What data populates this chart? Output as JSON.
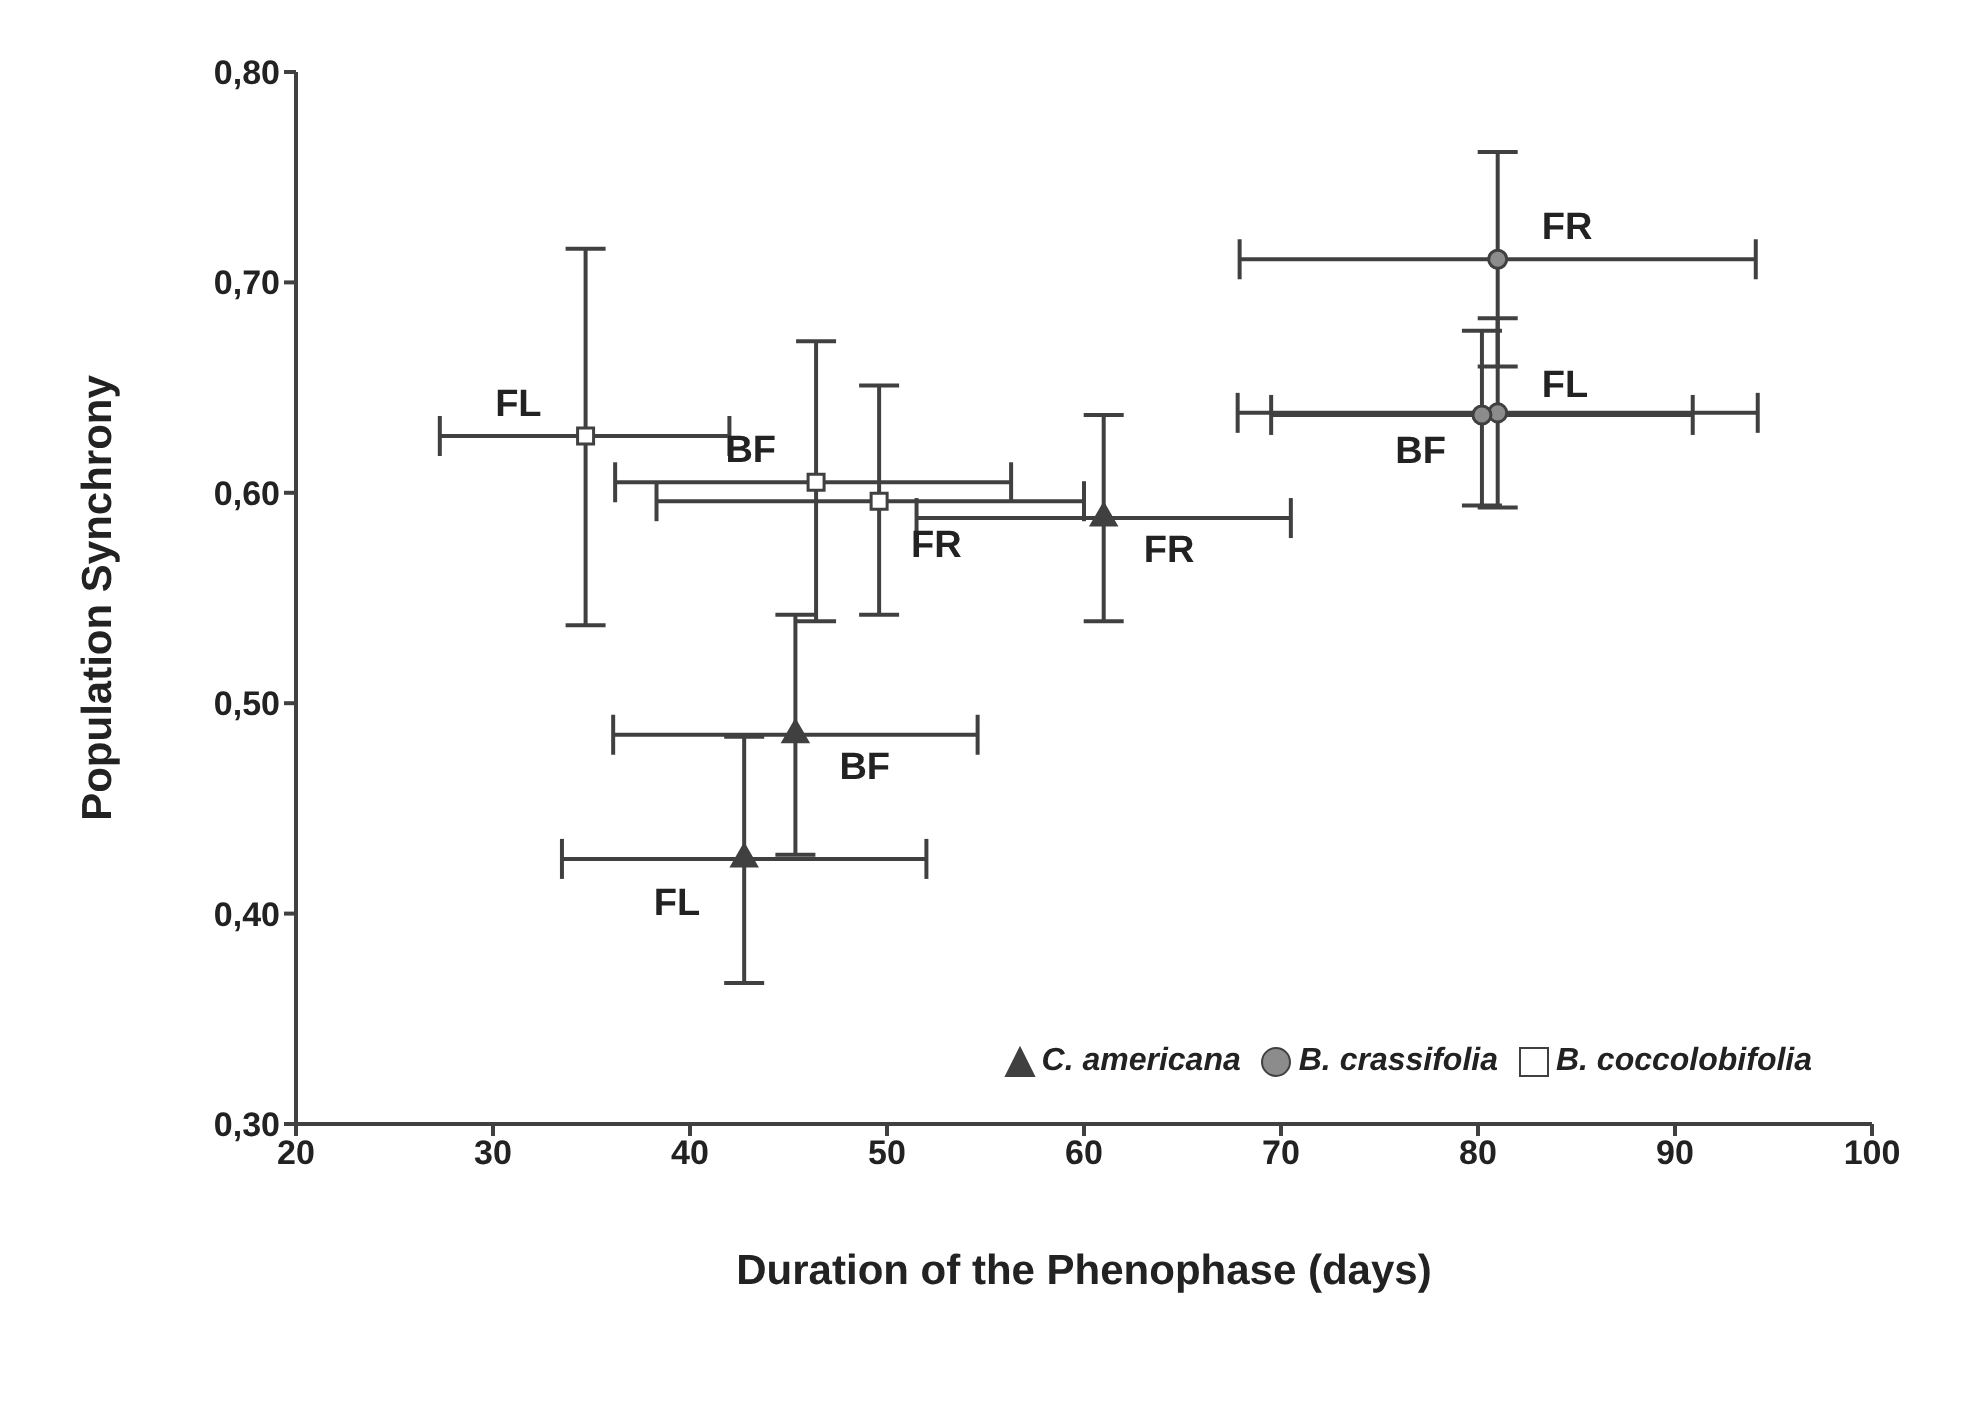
{
  "chart_data": {
    "type": "scatter",
    "xlabel": "Duration of the Phenophase (days)",
    "ylabel": "Population Synchrony",
    "xlim": [
      20,
      100
    ],
    "xticks": [
      20,
      30,
      40,
      50,
      60,
      70,
      80,
      90,
      100
    ],
    "ylim": [
      0.3,
      0.8
    ],
    "yticks": [
      {
        "value": 0.3,
        "label": "0,30"
      },
      {
        "value": 0.4,
        "label": "0,40"
      },
      {
        "value": 0.5,
        "label": "0,50"
      },
      {
        "value": 0.6,
        "label": "0,60"
      },
      {
        "value": 0.7,
        "label": "0,70"
      },
      {
        "value": 0.8,
        "label": "0,80"
      }
    ],
    "grid": false,
    "legend": "bottom right",
    "series": [
      {
        "name": "C. americana",
        "color": "#404040",
        "marker": "triangle",
        "x": [
          42.75,
          45.35,
          61.0
        ],
        "values": [
          0.426,
          0.485,
          0.588
        ],
        "xerrors": [
          [
            33.5,
            52.0
          ],
          [
            36.1,
            54.6
          ],
          [
            51.5,
            70.5
          ]
        ],
        "errors": [
          [
            0.367,
            0.484
          ],
          [
            0.428,
            0.542
          ],
          [
            0.539,
            0.637
          ]
        ]
      },
      {
        "name": "B. crassifolia",
        "color": "#8c8c8c",
        "marker": "circle",
        "x": [
          81.0,
          81.0,
          80.2
        ],
        "values": [
          0.711,
          0.638,
          0.637
        ],
        "xerrors": [
          [
            67.9,
            94.1
          ],
          [
            67.8,
            94.2
          ],
          [
            69.5,
            90.9
          ]
        ],
        "errors": [
          [
            0.66,
            0.762
          ],
          [
            0.593,
            0.683
          ],
          [
            0.594,
            0.677
          ]
        ]
      },
      {
        "name": "B. coccolobifolia",
        "color": "#ffffff",
        "marker": "square",
        "x": [
          34.7,
          46.4,
          49.6
        ],
        "values": [
          0.627,
          0.605,
          0.596
        ],
        "xerrors": [
          [
            27.3,
            42.0
          ],
          [
            36.2,
            56.3
          ],
          [
            38.3,
            60.0
          ]
        ],
        "errors": [
          [
            0.537,
            0.716
          ],
          [
            0.539,
            0.672
          ],
          [
            0.542,
            0.651
          ]
        ]
      }
    ],
    "annotations": [
      {
        "text": "FL",
        "x": 42.75,
        "y": 0.426
      },
      {
        "text": "BF",
        "x": 45.35,
        "y": 0.485
      },
      {
        "text": "FR",
        "x": 61.0,
        "y": 0.588
      },
      {
        "text": "FR",
        "x": 81.0,
        "y": 0.711
      },
      {
        "text": "FL",
        "x": 81.0,
        "y": 0.638
      },
      {
        "text": "BF",
        "x": 80.2,
        "y": 0.637
      },
      {
        "text": "FL",
        "x": 34.7,
        "y": 0.627
      },
      {
        "text": "BF",
        "x": 46.4,
        "y": 0.605
      },
      {
        "text": "FR",
        "x": 49.6,
        "y": 0.596
      }
    ]
  }
}
